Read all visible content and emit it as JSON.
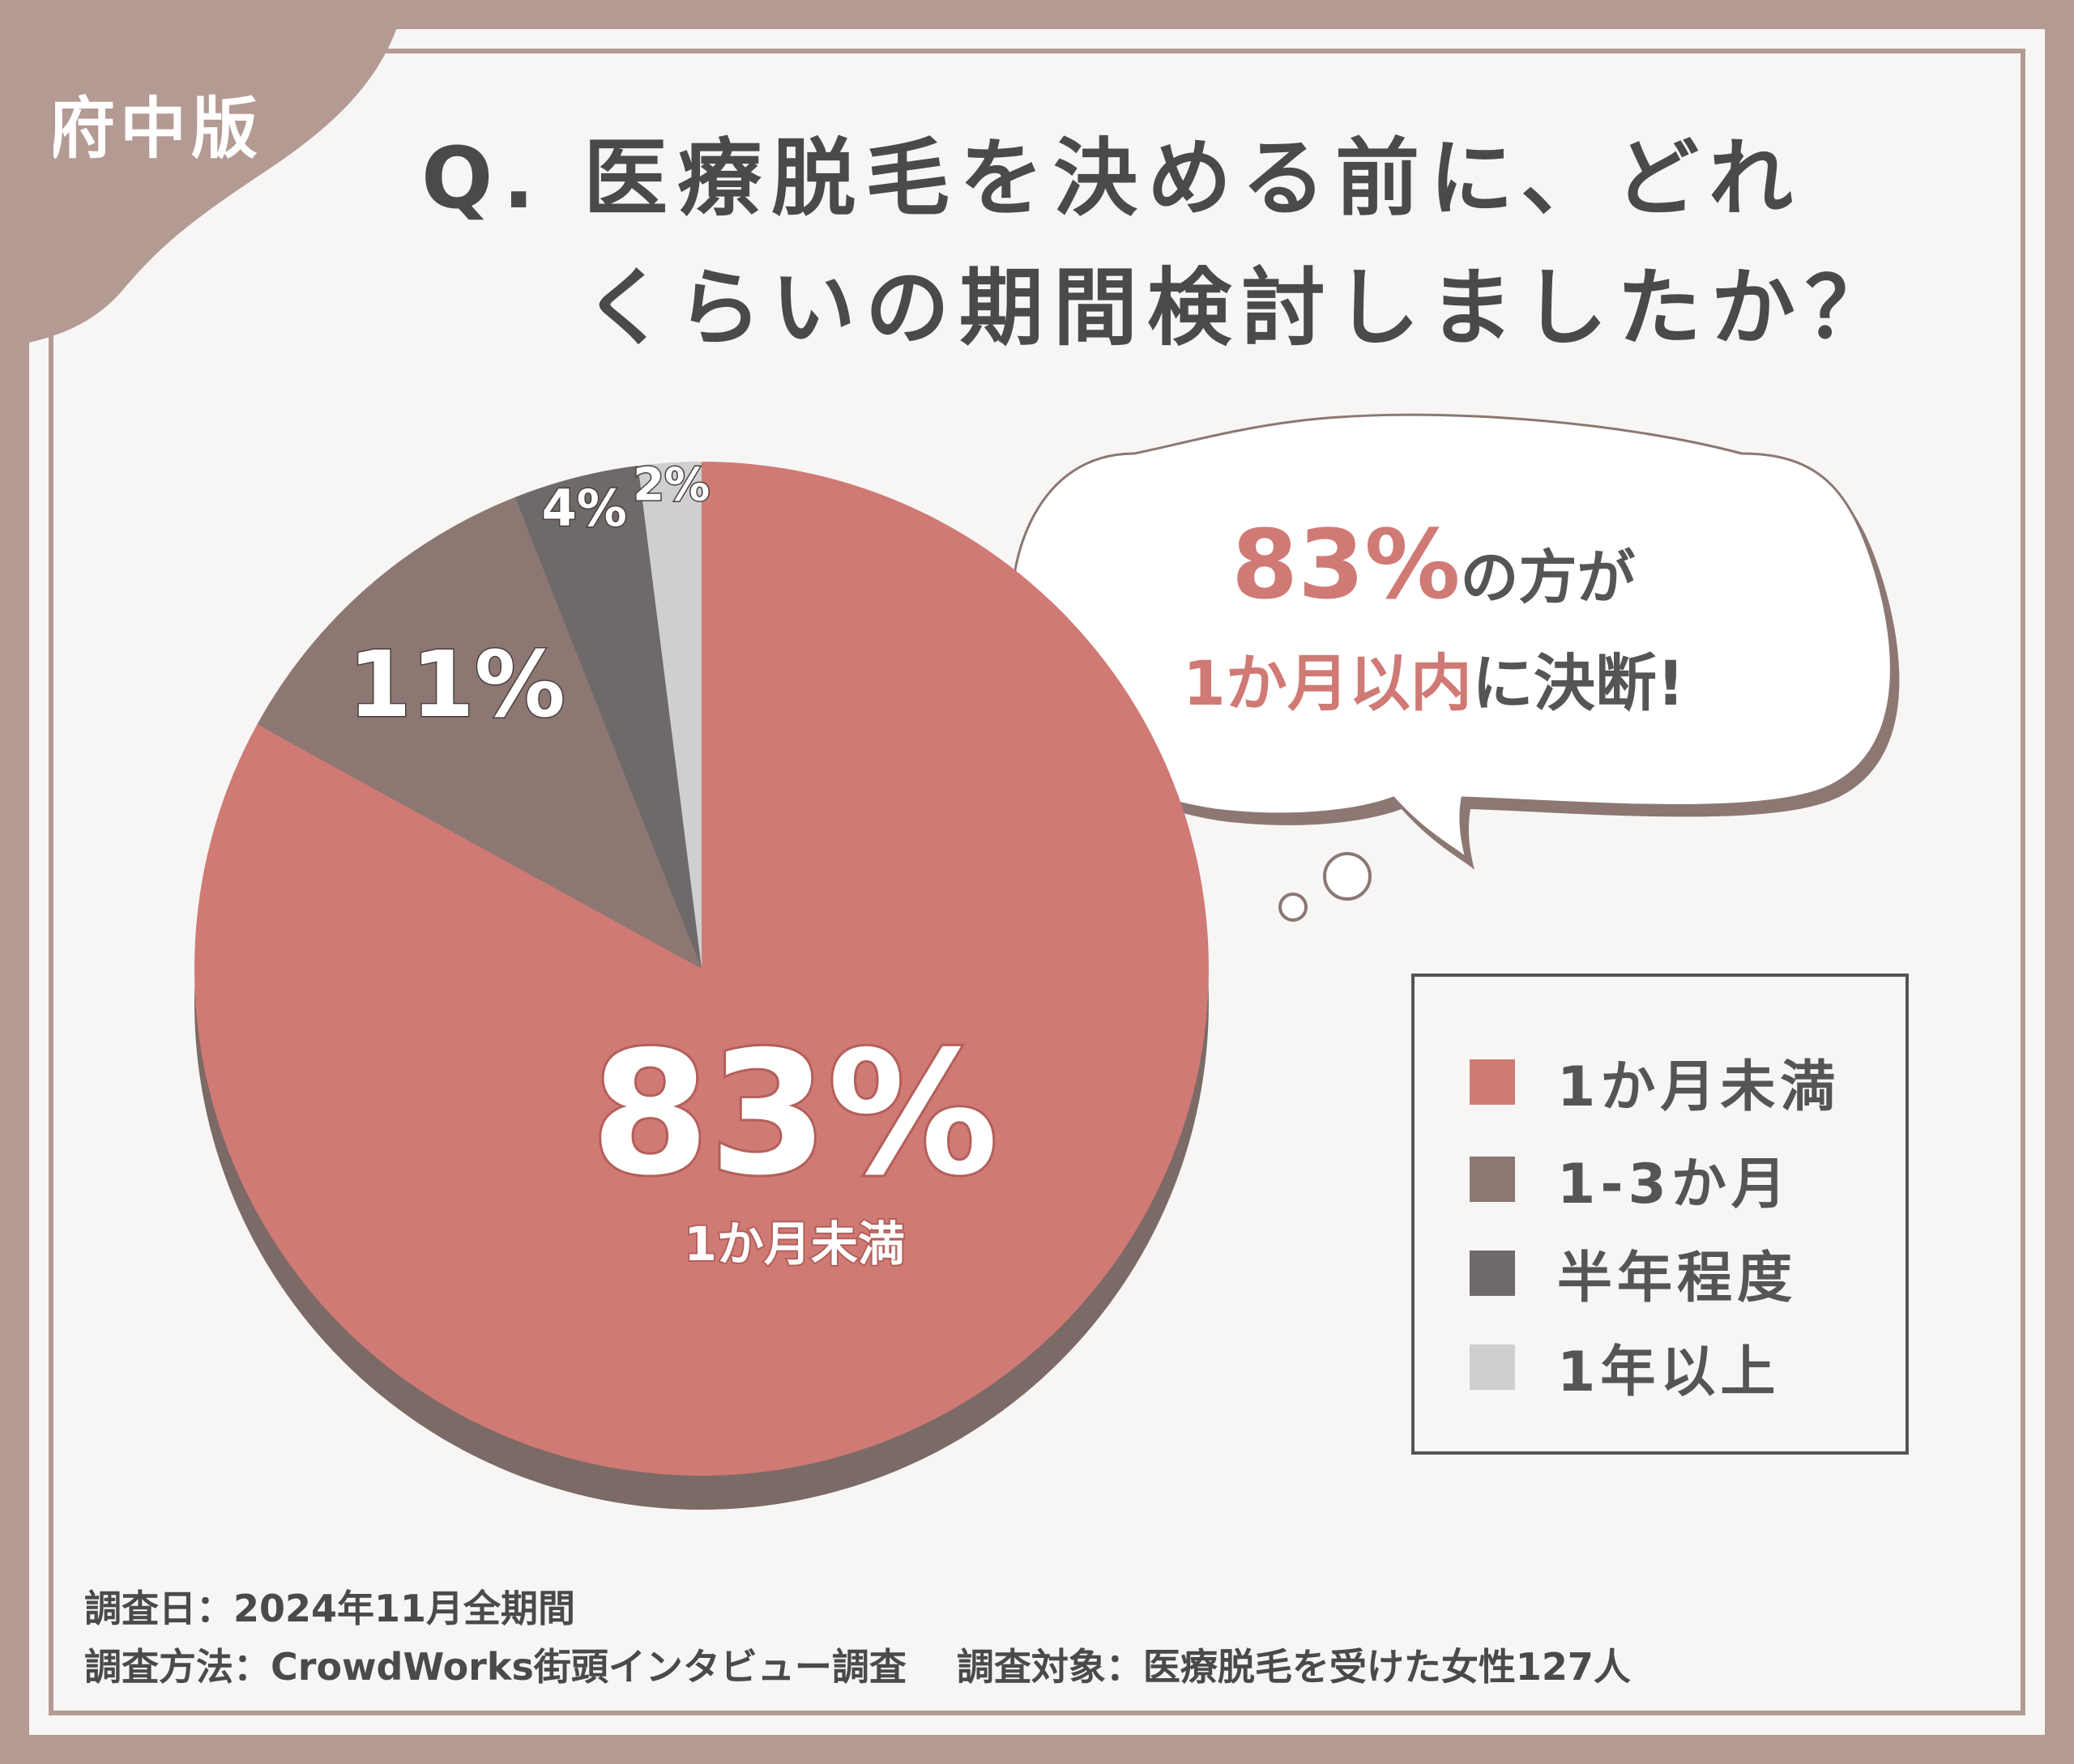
{
  "badge": "府中版",
  "title": {
    "line1": "Q. 医療脱毛を決める前に、どれ",
    "line2": "くらいの期間検討しましたか？"
  },
  "chart_data": {
    "type": "pie",
    "categories": [
      "1か月未満",
      "1-3か月",
      "半年程度",
      "1年以上"
    ],
    "values": [
      83,
      11,
      4,
      2
    ],
    "value_labels": [
      "83%",
      "11%",
      "4%",
      "2%"
    ],
    "main_slice_caption": "1か月未満",
    "colors": [
      "#d07a75",
      "#8c7773",
      "#6e6a69",
      "#cfcfcf"
    ],
    "legend_position": "right"
  },
  "bubble": {
    "pct": "83%",
    "line1_rest": "の方が",
    "line2_accent": "1か月以内",
    "line2_rest": "に決断!"
  },
  "legend": {
    "items": [
      {
        "label": "1か月未満",
        "color": "#d07a75"
      },
      {
        "label": "1-3か月",
        "color": "#8c7773"
      },
      {
        "label": "半年程度",
        "color": "#6e6a69"
      },
      {
        "label": "1年以上",
        "color": "#cfcfcf"
      }
    ]
  },
  "footer": {
    "line1": "調査日：2024年11月全期間",
    "line2": "調査方法：CrowdWorks街頭インタビュー調査　 調査対象：医療脱毛を受けた女性127人"
  }
}
